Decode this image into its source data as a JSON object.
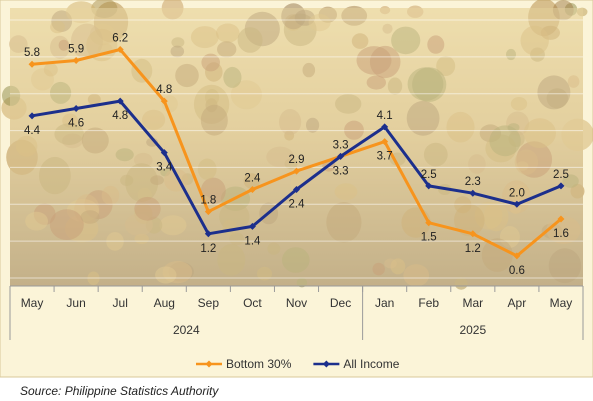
{
  "source": "Source: Philippine Statistics Authority",
  "chart_data": {
    "type": "line",
    "categories": [
      "May",
      "Jun",
      "Jul",
      "Aug",
      "Sep",
      "Oct",
      "Nov",
      "Dec",
      "Jan",
      "Feb",
      "Mar",
      "Apr",
      "May"
    ],
    "year_groups": [
      {
        "label": "2024",
        "start": 0,
        "end": 7
      },
      {
        "label": "2025",
        "start": 8,
        "end": 12
      }
    ],
    "series": [
      {
        "name": "Bottom 30%",
        "color": "#f7941d",
        "values": [
          5.8,
          5.9,
          6.2,
          4.8,
          1.8,
          2.4,
          2.9,
          3.3,
          3.7,
          1.5,
          1.2,
          0.6,
          1.6
        ]
      },
      {
        "name": "All Income",
        "color": "#1c2f8c",
        "values": [
          4.4,
          4.6,
          4.8,
          3.4,
          1.2,
          1.4,
          2.4,
          3.3,
          4.1,
          2.5,
          2.3,
          2.0,
          2.5
        ]
      }
    ],
    "ylim": [
      0,
      7
    ],
    "grid": true,
    "legend": "bottom-center",
    "background": "produce-photo"
  }
}
